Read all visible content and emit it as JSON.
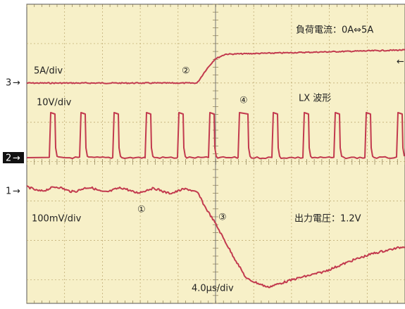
{
  "labels": {
    "load_current": "負荷電流：0A⇔5A",
    "ch3_scale": "5A/div",
    "ch2_scale": "10V/div",
    "lx_waveform": "LX 波形",
    "ch1_scale": "100mV/div",
    "output_voltage": "出力電圧：1.2V",
    "time_scale": "4.0μs/div",
    "marker_1": "①",
    "marker_2": "②",
    "marker_3": "③",
    "marker_4": "④"
  },
  "channels": {
    "ch3": "3",
    "ch2": "2",
    "ch1": "1"
  }
}
